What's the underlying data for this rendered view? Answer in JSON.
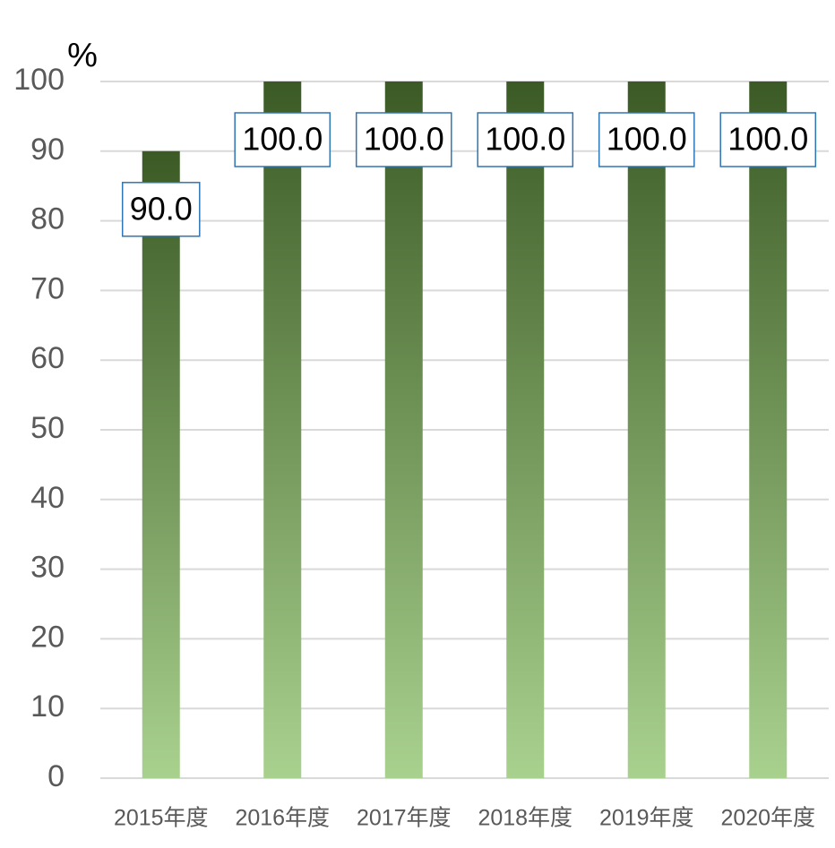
{
  "chart_data": {
    "type": "bar",
    "y_label": "%",
    "categories": [
      "2015年度",
      "2016年度",
      "2017年度",
      "2018年度",
      "2019年度",
      "2020年度"
    ],
    "values": [
      90,
      100,
      100,
      100,
      100,
      100
    ],
    "value_labels": [
      "90.0",
      "100.0",
      "100.0",
      "100.0",
      "100.0",
      "100.0"
    ],
    "color": [
      "#3b5a25",
      "#a9d18e"
    ],
    "ylim": [
      0,
      100
    ],
    "yticks": [
      0,
      10,
      20,
      30,
      40,
      50,
      60,
      70,
      80,
      90,
      100
    ],
    "grid": true
  }
}
